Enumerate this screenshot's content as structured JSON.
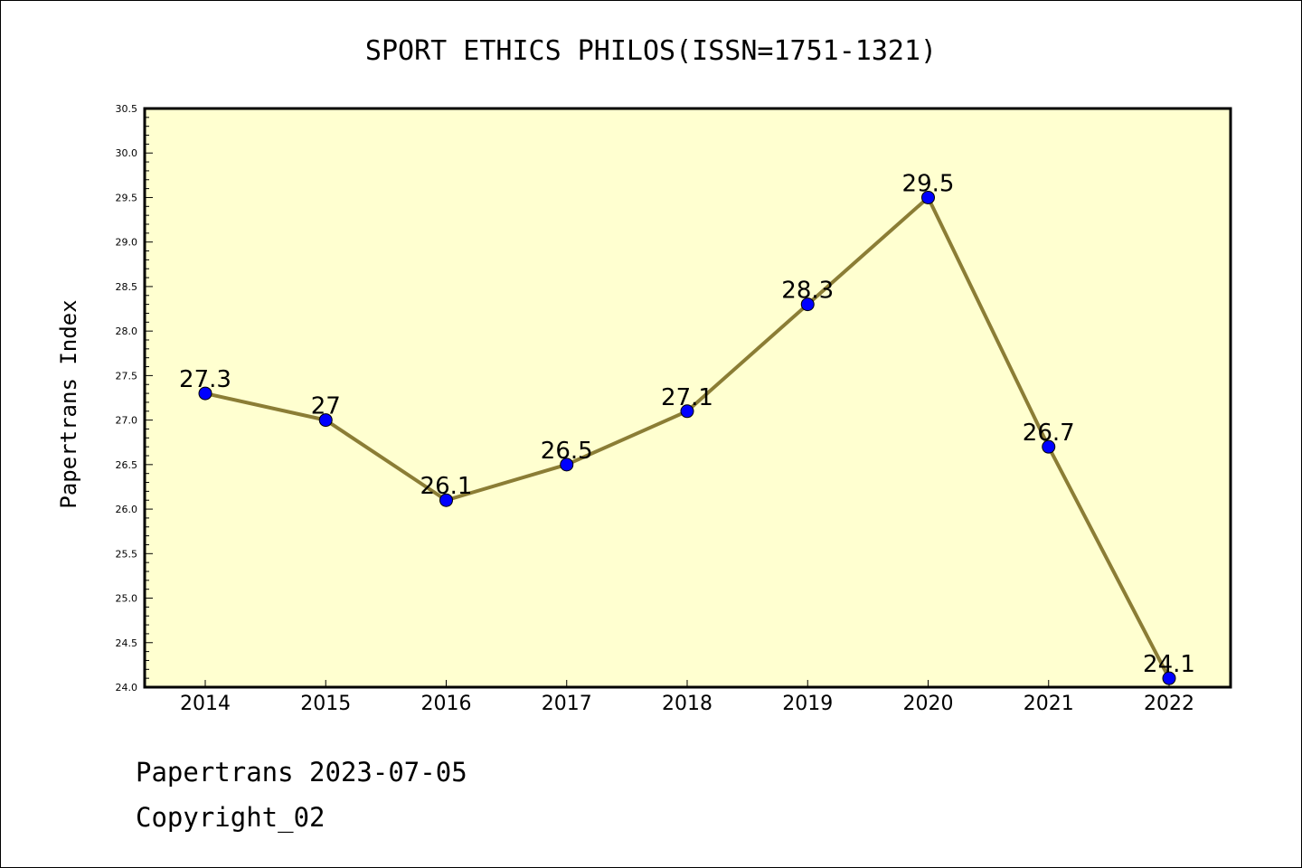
{
  "chart_data": {
    "type": "line",
    "title": "SPORT ETHICS PHILOS(ISSN=1751-1321)",
    "ylabel": "Papertrans Index",
    "xlabel": "",
    "categories": [
      "2014",
      "2015",
      "2016",
      "2017",
      "2018",
      "2019",
      "2020",
      "2021",
      "2022"
    ],
    "values": [
      27.3,
      27.0,
      26.1,
      26.5,
      27.1,
      28.3,
      29.5,
      26.7,
      24.1
    ],
    "data_labels": [
      "27.3",
      "27",
      "26.1",
      "26.5",
      "27.1",
      "28.3",
      "29.5",
      "26.7",
      "24.1"
    ],
    "ylim": [
      24.0,
      30.5
    ],
    "yticks": [
      "24.0",
      "24.5",
      "25.0",
      "25.5",
      "26.0",
      "26.5",
      "27.0",
      "27.5",
      "28.0",
      "28.5",
      "29.0",
      "29.5",
      "30.0",
      "30.5"
    ],
    "grid": false,
    "colors": {
      "plot_background": "#ffffd0",
      "line": "#8b7d35",
      "marker": "#0000ff"
    }
  },
  "footer": {
    "line1": "Papertrans 2023-07-05",
    "line2": "Copyright_02"
  }
}
